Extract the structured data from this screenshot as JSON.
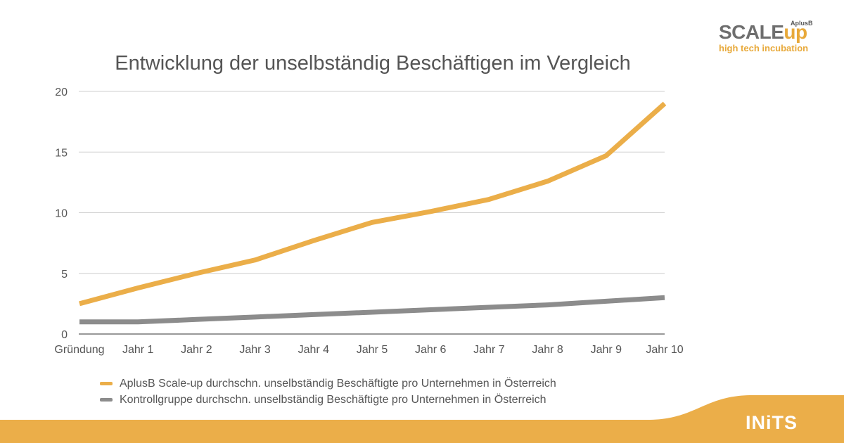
{
  "logos": {
    "scaleup": {
      "main_a": "SCALE",
      "main_b": "up",
      "badge": "AplusB",
      "tagline": "high tech incubation"
    },
    "inits": {
      "text": "INiTS"
    }
  },
  "colors": {
    "series_1": "#EBAE49",
    "series_2": "#8C8C8C",
    "footer": "#EBAE49",
    "grid": "#CFCFCF"
  },
  "chart_data": {
    "type": "line",
    "title": "Entwicklung der unselbständig Beschäftigen im Vergleich",
    "categories": [
      "Gründung",
      "Jahr 1",
      "Jahr 2",
      "Jahr 3",
      "Jahr 4",
      "Jahr 5",
      "Jahr 6",
      "Jahr 7",
      "Jahr 8",
      "Jahr 9",
      "Jahr 10"
    ],
    "series": [
      {
        "name": "AplusB Scale-up durchschn. unselbständig Beschäftigte pro Unternehmen in Österreich",
        "values": [
          2.5,
          3.8,
          5.0,
          6.1,
          7.7,
          9.2,
          10.1,
          11.1,
          12.6,
          14.7,
          19.0
        ]
      },
      {
        "name": "Kontrollgruppe durchschn. unselbständig Beschäftigte pro Unternehmen in Österreich",
        "values": [
          1.0,
          1.0,
          1.2,
          1.4,
          1.6,
          1.8,
          2.0,
          2.2,
          2.4,
          2.7,
          3.0
        ]
      }
    ],
    "yticks": [
      "0",
      "5",
      "10",
      "15",
      "20"
    ],
    "ylim": [
      0,
      20
    ],
    "grid": true,
    "legend": "bottom-left"
  }
}
